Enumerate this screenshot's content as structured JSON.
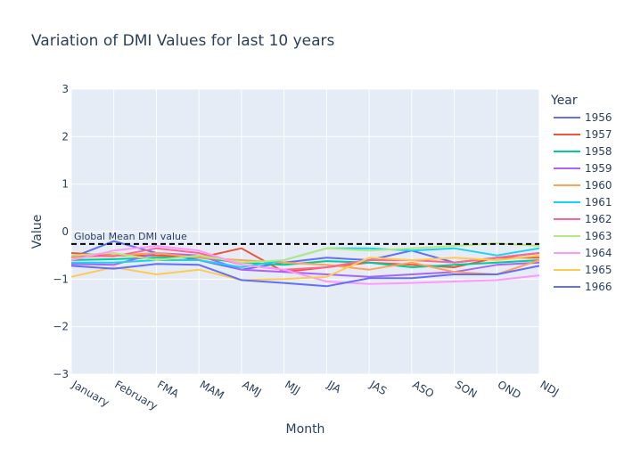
{
  "chart_data": {
    "type": "line",
    "title": "Variation of DMI Values for last 10 years",
    "xlabel": "Month",
    "ylabel": "Value",
    "categories": [
      "January",
      "February",
      "FMA",
      "MAM",
      "AMJ",
      "MJJ",
      "JJA",
      "JAS",
      "ASO",
      "SON",
      "OND",
      "NDJ"
    ],
    "ylim": [
      -3,
      3
    ],
    "yticks": [
      3,
      2,
      1,
      0,
      -1,
      -2,
      -3
    ],
    "ytick_labels": [
      "3",
      "2",
      "1",
      "0",
      "−1",
      "−2",
      "−3"
    ],
    "grid": true,
    "legend_title": "Year",
    "legend_position": "right",
    "annotation": {
      "text": "Global Mean DMI value",
      "y": -0.26
    },
    "series": [
      {
        "name": "1956",
        "color": "#636efa",
        "values": [
          -0.55,
          -0.2,
          -0.45,
          -0.6,
          -0.8,
          -0.65,
          -0.55,
          -0.6,
          -0.4,
          -0.65,
          -0.55,
          -0.45
        ]
      },
      {
        "name": "1957",
        "color": "#EF553B",
        "values": [
          -0.45,
          -0.5,
          -0.5,
          -0.55,
          -0.35,
          -0.85,
          -0.75,
          -0.65,
          -0.7,
          -0.75,
          -0.55,
          -0.55
        ]
      },
      {
        "name": "1958",
        "color": "#00cc96",
        "values": [
          -0.6,
          -0.58,
          -0.55,
          -0.55,
          -0.65,
          -0.7,
          -0.62,
          -0.65,
          -0.75,
          -0.7,
          -0.65,
          -0.6
        ]
      },
      {
        "name": "1959",
        "color": "#ab63fa",
        "values": [
          -0.68,
          -0.7,
          -0.45,
          -0.5,
          -0.8,
          -0.85,
          -0.9,
          -0.95,
          -0.9,
          -0.85,
          -0.7,
          -0.65
        ]
      },
      {
        "name": "1960",
        "color": "#FFA15A",
        "values": [
          -0.55,
          -0.5,
          -0.45,
          -0.55,
          -0.6,
          -0.65,
          -0.7,
          -0.8,
          -0.65,
          -0.85,
          -0.9,
          -0.6
        ]
      },
      {
        "name": "1961",
        "color": "#19d3f3",
        "values": [
          -0.65,
          -0.65,
          -0.6,
          -0.6,
          -0.75,
          -0.6,
          -0.35,
          -0.35,
          -0.4,
          -0.35,
          -0.5,
          -0.35
        ]
      },
      {
        "name": "1962",
        "color": "#FF6692",
        "values": [
          -0.5,
          -0.52,
          -0.35,
          -0.45,
          -0.7,
          -0.8,
          -0.75,
          -0.6,
          -0.6,
          -0.65,
          -0.55,
          -0.45
        ]
      },
      {
        "name": "1963",
        "color": "#B6E880",
        "values": [
          -0.5,
          -0.45,
          -0.6,
          -0.5,
          -0.65,
          -0.6,
          -0.35,
          -0.4,
          -0.35,
          -0.3,
          -0.25,
          -0.3
        ]
      },
      {
        "name": "1964",
        "color": "#FF97FF",
        "values": [
          -0.6,
          -0.4,
          -0.3,
          -0.4,
          -0.7,
          -0.8,
          -1.05,
          -1.1,
          -1.08,
          -1.05,
          -1.02,
          -0.92
        ]
      },
      {
        "name": "1965",
        "color": "#FECB52",
        "values": [
          -0.95,
          -0.75,
          -0.9,
          -0.8,
          -1.02,
          -1.0,
          -0.95,
          -0.55,
          -0.6,
          -0.55,
          -0.6,
          -0.5
        ]
      },
      {
        "name": "1966",
        "color": "#636efa",
        "values": [
          -0.72,
          -0.78,
          -0.68,
          -0.7,
          -1.02,
          -1.08,
          -1.15,
          -0.98,
          -0.98,
          -0.9,
          -0.9,
          -0.72
        ]
      }
    ]
  }
}
